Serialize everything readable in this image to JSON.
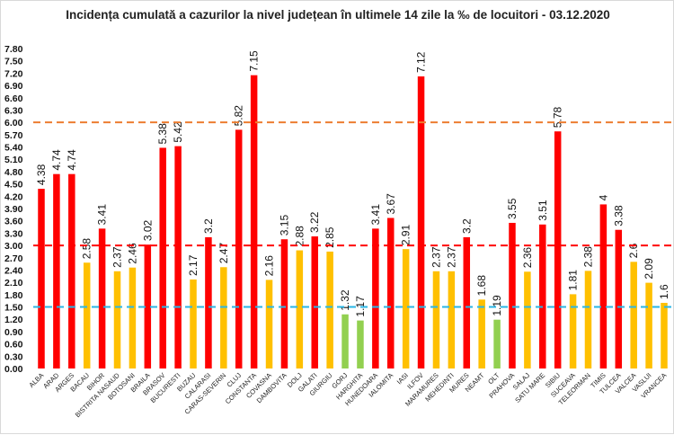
{
  "chart_data": {
    "type": "bar",
    "title": "Incidența cumulată a cazurilor la nivel județean în ultimele 14 zile la ‰ de locuitori - 03.12.2020",
    "xlabel": "",
    "ylabel": "",
    "ylim": [
      0,
      7.8
    ],
    "ytick_step": 0.3,
    "grid": false,
    "legend": "none",
    "categories": [
      "ALBA",
      "ARAD",
      "ARGES",
      "BACAU",
      "BIHOR",
      "BISTRITA NASAUD",
      "BOTOSANI",
      "BRAILA",
      "BRASOV",
      "BUCURESTI",
      "BUZAU",
      "CALARASI",
      "CARAS-SEVERIN",
      "CLUJ",
      "CONSTANTA",
      "COVASNA",
      "DAMBOVITA",
      "DOLJ",
      "GALATI",
      "GIURGIU",
      "GORJ",
      "HARGHITA",
      "HUNEDOARA",
      "IALOMITA",
      "IASI",
      "ILFOV",
      "MARAMURES",
      "MEHEDINTI",
      "MURES",
      "NEAMT",
      "OLT",
      "PRAHOVA",
      "SALAJ",
      "SATU MARE",
      "SIBIU",
      "SUCEAVA",
      "TELEORMAN",
      "TIMIS",
      "TULCEA",
      "VALCEA",
      "VASLUI",
      "VRANCEA"
    ],
    "values": [
      4.38,
      4.74,
      4.74,
      2.58,
      3.41,
      2.37,
      2.46,
      3.02,
      5.38,
      5.42,
      2.17,
      3.2,
      2.47,
      5.82,
      7.15,
      2.16,
      3.15,
      2.88,
      3.22,
      2.85,
      1.32,
      1.17,
      3.41,
      3.67,
      2.91,
      7.12,
      2.37,
      2.37,
      3.2,
      1.68,
      1.19,
      3.55,
      2.36,
      3.51,
      5.78,
      1.81,
      2.38,
      4,
      3.38,
      2.6,
      2.09,
      1.6
    ],
    "reference_lines": [
      {
        "value": 6.0,
        "color": "#ed7d31",
        "style": "dashed"
      },
      {
        "value": 3.0,
        "color": "#ff0000",
        "style": "dashed"
      },
      {
        "value": 1.5,
        "color": "#29b6e6",
        "style": "dashed"
      }
    ],
    "colors": {
      "above_3": "#ff0000",
      "between_1_5_and_3": "#ffc000",
      "below_1_5": "#92d050"
    }
  }
}
